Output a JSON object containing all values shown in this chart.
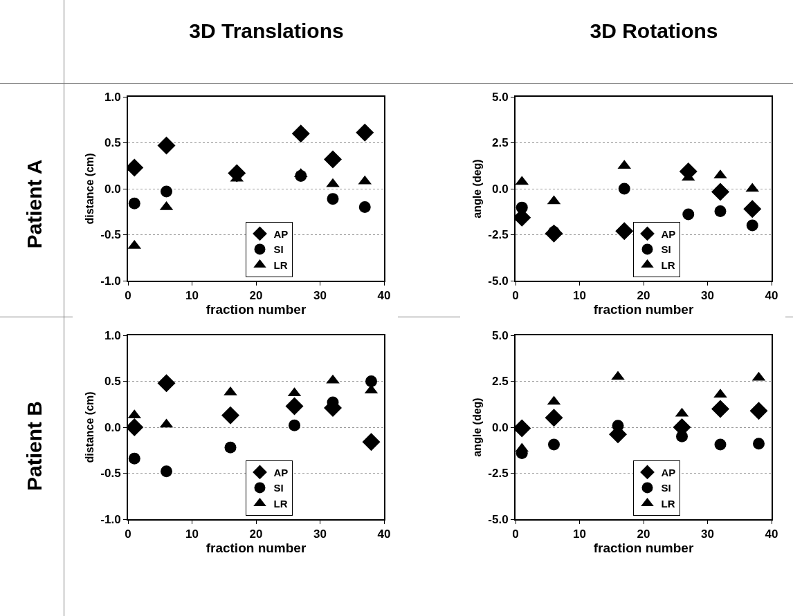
{
  "chart_data": [
    {
      "type": "scatter",
      "annotations": [
        "3D Translations",
        "Patient A"
      ],
      "xlabel": "fraction number",
      "ylabel": "distance (cm)",
      "xlim": [
        0,
        40
      ],
      "xticks": [
        0,
        10,
        20,
        30,
        40
      ],
      "ylim": [
        -1,
        1
      ],
      "yticks": [
        {
          "value": -1,
          "label": "-1.0"
        },
        {
          "value": -0.5,
          "label": "-0.5"
        },
        {
          "value": 0,
          "label": "0.0"
        },
        {
          "value": 0.5,
          "label": "0.5"
        },
        {
          "value": 1,
          "label": "1.0"
        }
      ],
      "grid": "y",
      "legend": "bottom",
      "x": [
        1,
        6,
        17,
        27,
        32,
        37
      ],
      "series": [
        {
          "name": "AP",
          "color": "#000000",
          "marker": "diamond",
          "values": [
            0.23,
            0.47,
            0.17,
            0.6,
            0.32,
            0.61
          ]
        },
        {
          "name": "SI",
          "color": "#000000",
          "marker": "circle",
          "values": [
            -0.16,
            -0.03,
            null,
            0.14,
            -0.11,
            -0.2
          ]
        },
        {
          "name": "LR",
          "color": "#000000",
          "marker": "triangle",
          "values": [
            -0.62,
            -0.2,
            0.11,
            0.16,
            0.05,
            0.08
          ]
        }
      ]
    },
    {
      "type": "scatter",
      "annotations": [
        "3D Rotations"
      ],
      "xlabel": "fraction number",
      "ylabel": "angle (deg)",
      "xlim": [
        0,
        40
      ],
      "xticks": [
        0,
        10,
        20,
        30,
        40
      ],
      "ylim": [
        -5,
        5
      ],
      "yticks": [
        {
          "value": -5,
          "label": "-5.0"
        },
        {
          "value": -2.5,
          "label": "-2.5"
        },
        {
          "value": 0,
          "label": "0.0"
        },
        {
          "value": 2.5,
          "label": "2.5"
        },
        {
          "value": 5,
          "label": "5.0"
        }
      ],
      "grid": "y",
      "legend": "bottom",
      "x": [
        1,
        6,
        17,
        27,
        32,
        37
      ],
      "series": [
        {
          "name": "AP",
          "color": "#000000",
          "marker": "diamond",
          "values": [
            -1.57,
            -2.43,
            -2.3,
            0.94,
            -0.17,
            -1.1
          ]
        },
        {
          "name": "SI",
          "color": "#000000",
          "marker": "circle",
          "values": [
            -1.02,
            -2.35,
            0,
            -1.39,
            -1.22,
            -1.99
          ]
        },
        {
          "name": "LR",
          "color": "#000000",
          "marker": "triangle",
          "values": [
            0.38,
            -0.68,
            1.25,
            0.6,
            0.72,
            0
          ]
        }
      ]
    },
    {
      "type": "scatter",
      "annotations": [
        "Patient B"
      ],
      "xlabel": "fraction number",
      "ylabel": "distance (cm)",
      "xlim": [
        0,
        40
      ],
      "xticks": [
        0,
        10,
        20,
        30,
        40
      ],
      "ylim": [
        -1,
        1
      ],
      "yticks": [
        {
          "value": -1,
          "label": "-1.0"
        },
        {
          "value": -0.5,
          "label": "-0.5"
        },
        {
          "value": 0,
          "label": "0.0"
        },
        {
          "value": 0.5,
          "label": "0.5"
        },
        {
          "value": 1,
          "label": "1.0"
        }
      ],
      "grid": "y",
      "legend": "bottom",
      "x": [
        1,
        6,
        16,
        26,
        32,
        38
      ],
      "series": [
        {
          "name": "AP",
          "color": "#000000",
          "marker": "diamond",
          "values": [
            0,
            0.48,
            0.13,
            0.23,
            0.21,
            -0.16
          ]
        },
        {
          "name": "SI",
          "color": "#000000",
          "marker": "circle",
          "values": [
            -0.34,
            -0.48,
            -0.22,
            0.02,
            0.27,
            0.5
          ]
        },
        {
          "name": "LR",
          "color": "#000000",
          "marker": "triangle",
          "values": [
            0.13,
            0.03,
            0.38,
            0.37,
            0.51,
            0.4
          ]
        }
      ]
    },
    {
      "type": "scatter",
      "xlabel": "fraction number",
      "ylabel": "angle (deg)",
      "xlim": [
        0,
        40
      ],
      "xticks": [
        0,
        10,
        20,
        30,
        40
      ],
      "ylim": [
        -5,
        5
      ],
      "yticks": [
        {
          "value": -5,
          "label": "-5.0"
        },
        {
          "value": -2.5,
          "label": "-2.5"
        },
        {
          "value": 0,
          "label": "0.0"
        },
        {
          "value": 2.5,
          "label": "2.5"
        },
        {
          "value": 5,
          "label": "5.0"
        }
      ],
      "grid": "y",
      "legend": "bottom",
      "x": [
        1,
        6,
        16,
        26,
        32,
        38
      ],
      "series": [
        {
          "name": "AP",
          "color": "#000000",
          "marker": "diamond",
          "values": [
            -0.06,
            0.52,
            -0.39,
            0,
            1.0,
            0.89
          ]
        },
        {
          "name": "SI",
          "color": "#000000",
          "marker": "circle",
          "values": [
            -1.41,
            -0.94,
            0.08,
            -0.5,
            -0.94,
            -0.89
          ]
        },
        {
          "name": "LR",
          "color": "#000000",
          "marker": "triangle",
          "values": [
            -1.17,
            1.39,
            2.74,
            0.74,
            1.78,
            2.7
          ]
        }
      ]
    }
  ]
}
